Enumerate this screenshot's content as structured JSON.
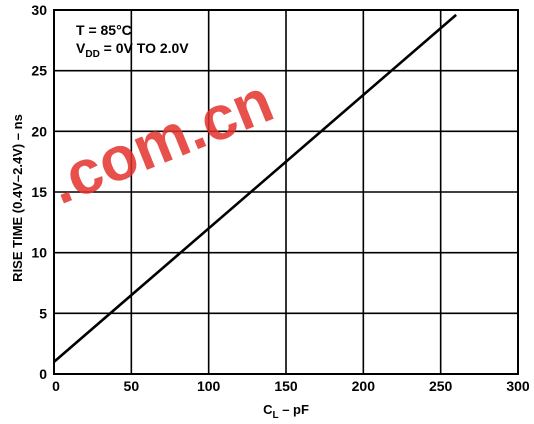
{
  "chart_data": {
    "type": "line",
    "title": "",
    "xlabel": {
      "main": "C",
      "sub": "L",
      "rest": " – pF"
    },
    "ylabel": "RISE TIME (0.4V–2.4V) – ns",
    "xlim": [
      0,
      300
    ],
    "ylim": [
      0,
      30
    ],
    "x_ticks": [
      0,
      50,
      100,
      150,
      200,
      250,
      300
    ],
    "y_ticks": [
      0,
      5,
      10,
      15,
      20,
      25,
      30
    ],
    "x_tick_labels": [
      "0",
      "50",
      "100",
      "150",
      "200",
      "250",
      "300"
    ],
    "y_tick_labels": [
      "0",
      "5",
      "10",
      "15",
      "20",
      "25",
      "30"
    ],
    "grid": true,
    "series": [
      {
        "x": [
          0,
          260
        ],
        "y": [
          1.0,
          29.6
        ]
      }
    ],
    "annotations": {
      "line1": "T = 85°C",
      "line2": {
        "main": "V",
        "sub": "DD",
        "rest": " = 0V TO 2.0V"
      }
    }
  },
  "watermark": {
    "text": ".com.cn",
    "color": "#e5322d"
  }
}
